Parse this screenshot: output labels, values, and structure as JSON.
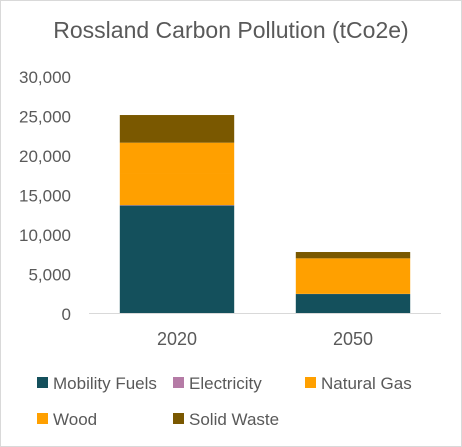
{
  "chart_data": {
    "type": "bar",
    "stacked": true,
    "title": "Rossland Carbon Pollution (tCo2e)",
    "xlabel": "",
    "ylabel": "",
    "categories": [
      "2020",
      "2050"
    ],
    "ylim": [
      0,
      30000
    ],
    "yticks": [
      0,
      5000,
      10000,
      15000,
      20000,
      25000,
      30000
    ],
    "ytick_labels": [
      "0",
      "5,000",
      "10,000",
      "15,000",
      "20,000",
      "25,000",
      "30,000"
    ],
    "grid": false,
    "legend_position": "bottom",
    "series": [
      {
        "name": "Mobility Fuels",
        "color": "#14505c",
        "values": [
          13600,
          2400
        ]
      },
      {
        "name": "Electricity",
        "color": "#b57ba6",
        "values": [
          60,
          20
        ]
      },
      {
        "name": "Natural Gas",
        "color": "#ffa000",
        "values": [
          4000,
          2200
        ]
      },
      {
        "name": "Wood",
        "color": "#ffa000",
        "values": [
          3900,
          2300
        ]
      },
      {
        "name": "Solid Waste",
        "color": "#7a5800",
        "values": [
          3500,
          800
        ]
      }
    ]
  }
}
